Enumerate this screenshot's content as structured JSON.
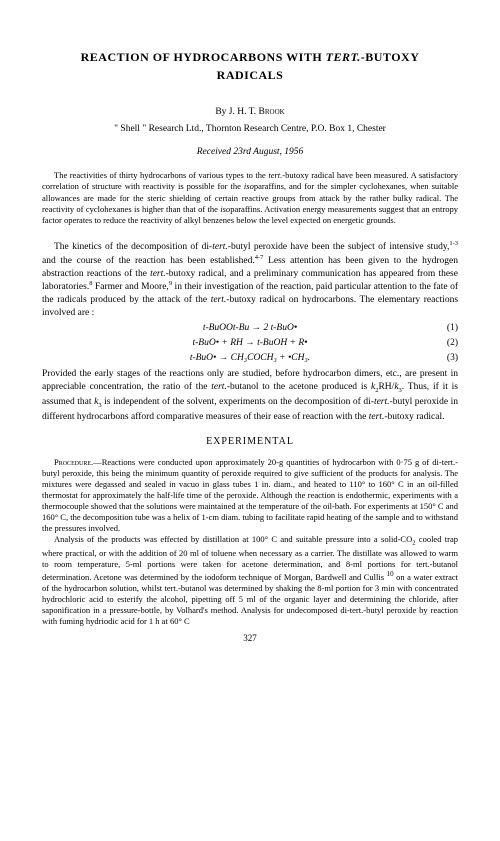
{
  "title_line1": "REACTION OF HYDROCARBONS WITH ",
  "title_italic": "TERT.",
  "title_after": "-BUTOXY",
  "title_line2": "RADICALS",
  "author_prefix": "By ",
  "author_name": "J. H. T. Brook",
  "affiliation": "\" Shell \" Research Ltd., Thornton Research Centre, P.O. Box 1, Chester",
  "received": "Received 23rd August, 1956",
  "abstract": "The reactivities of thirty hydrocarbons of various types to the tert.-butoxy radical have been measured. A satisfactory correlation of structure with reactivity is possible for the isoparaffins, and for the simpler cyclohexanes, when suitable allowances are made for the steric shielding of certain reactive groups from attack by the rather bulky radical. The reactivity of cyclohexanes is higher than that of the isoparaffins. Activation energy measurements suggest that an entropy factor operates to reduce the reactivity of alkyl benzenes below the level expected on energetic grounds.",
  "para1": "The kinetics of the decomposition of di-tert.-butyl peroxide have been the subject of intensive study,1-3 and the course of the reaction has been established.4-7 Less attention has been given to the hydrogen abstraction reactions of the tert.-butoxy radical, and a preliminary communication has appeared from these laboratories.8 Farmer and Moore,9 in their investigation of the reaction, paid particular attention to the fate of the radicals produced by the attack of the tert.-butoxy radical on hydrocarbons. The elementary reactions involved are :",
  "eq1": "t-BuOOt-Bu → 2 t-BuO•",
  "eq1_num": "(1)",
  "eq2": "t-BuO• + RH → t-BuOH + R•",
  "eq2_num": "(2)",
  "eq3": "t-BuO• → CH₃COCH₃ + •CH₃.",
  "eq3_num": "(3)",
  "para2": "Provided the early stages of the reactions only are studied, before hydrocarbon dimers, etc., are present in appreciable concentration, the ratio of the tert.-butanol to the acetone produced is k₂RH/k₃. Thus, if it is assumed that k₃ is independent of the solvent, experiments on the decomposition of di-tert.-butyl peroxide in different hydrocarbons afford comparative measures of their ease of reaction with the tert.-butoxy radical.",
  "section_experimental": "EXPERIMENTAL",
  "exp1_label": "Procedure.—",
  "exp1": "Reactions were conducted upon approximately 20-g quantities of hydrocarbon with 0·75 g of di-tert.-butyl peroxide, this being the minimum quantity of peroxide required to give sufficient of the products for analysis. The mixtures were degassed and sealed in vacuo in glass tubes 1 in. diam., and heated to 110° to 160° C in an oil-filled thermostat for approximately the half-life time of the peroxide. Although the reaction is endothermic, experiments with a thermocouple showed that the solutions were maintained at the temperature of the oil-bath. For experiments at 150° C and 160° C, the decomposition tube was a helix of 1-cm diam. tubing to facilitate rapid heating of the sample and to withstand the pressures involved.",
  "exp2": "Analysis of the products was effected by distillation at 100° C and suitable pressure into a solid-CO₂ cooled trap where practical, or with the addition of 20 ml of toluene when necessary as a carrier. The distillate was allowed to warm to room temperature, 5-ml portions were taken for acetone determination, and 8-ml portions for tert.-butanol determination. Acetone was determined by the iodoform technique of Morgan, Bardwell and Cullis 10 on a water extract of the hydrocarbon solution, whilst tert.-butanol was determined by shaking the 8-ml portion for 3 min with concentrated hydrochloric acid to esterify the alcohol, pipetting off 5 ml of the organic layer and determining the chloride, after saponification in a pressure-bottle, by Volhard's method. Analysis for undecomposed di-tert.-butyl peroxide by reaction with fuming hydriodic acid for 1 h at 60° C",
  "page_number": "327"
}
